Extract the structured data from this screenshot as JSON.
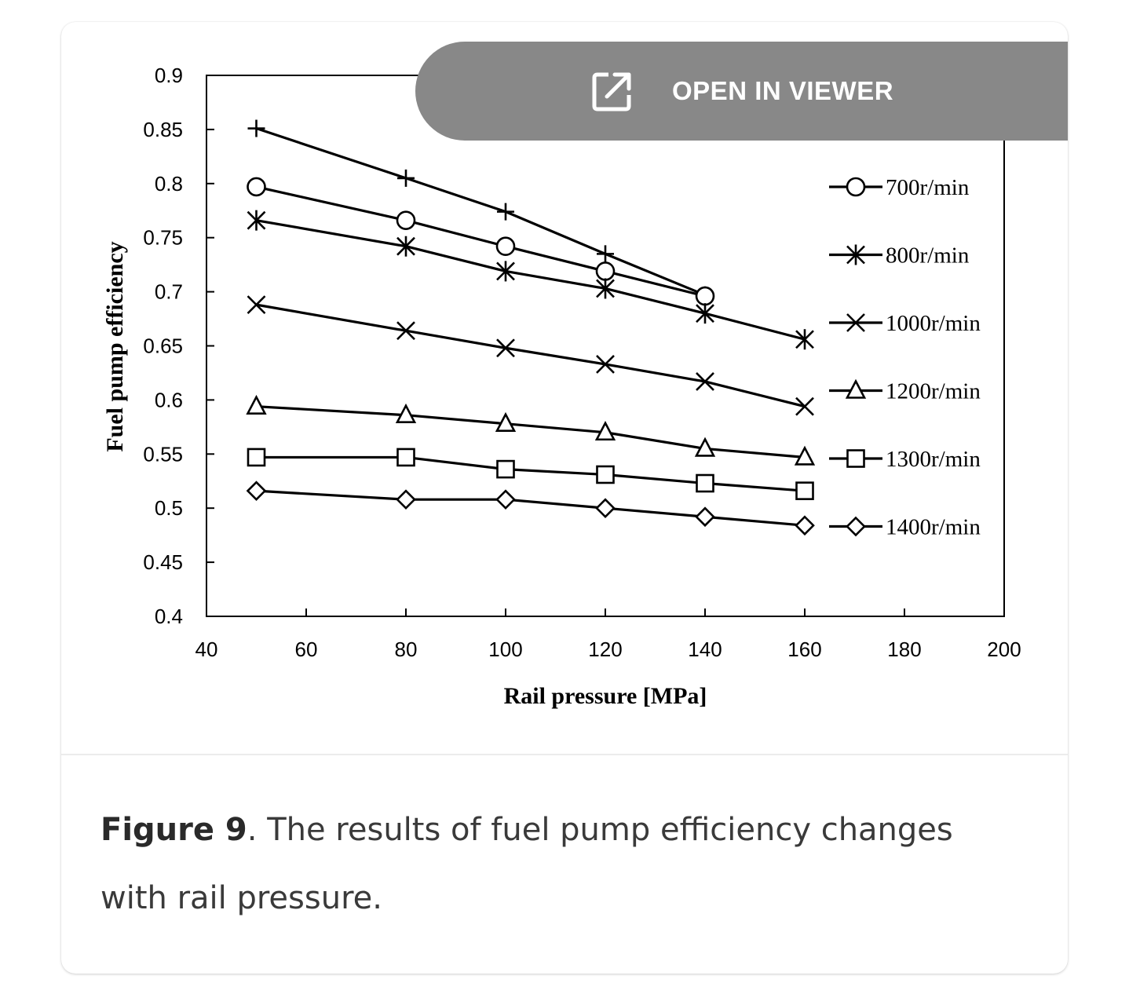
{
  "viewer_button": {
    "label": "OPEN IN VIEWER",
    "icon": "external-link-icon"
  },
  "caption": {
    "figure_label": "Figure 9",
    "text": ". The results of fuel pump efficiency changes with rail pressure."
  },
  "chart_data": {
    "type": "line",
    "xlabel": "Rail pressure [MPa]",
    "ylabel": "Fuel pump efficiency",
    "xlim": [
      40,
      200
    ],
    "ylim": [
      0.4,
      0.9
    ],
    "xticks": [
      "40",
      "60",
      "80",
      "100",
      "120",
      "140",
      "160",
      "180",
      "200"
    ],
    "yticks": [
      "0.4",
      "0.45",
      "0.5",
      "0.55",
      "0.6",
      "0.65",
      "0.7",
      "0.75",
      "0.8",
      "0.85",
      "0.9"
    ],
    "grid": false,
    "legend_position": "right",
    "series": [
      {
        "name": "",
        "marker": "plus",
        "x": [
          50,
          80,
          100,
          120,
          140
        ],
        "y": [
          0.851,
          0.805,
          0.774,
          0.735,
          0.697
        ]
      },
      {
        "name": "700r/min",
        "marker": "circle",
        "x": [
          50,
          80,
          100,
          120,
          140
        ],
        "y": [
          0.797,
          0.766,
          0.742,
          0.719,
          0.696
        ]
      },
      {
        "name": "800r/min",
        "marker": "asterisk",
        "x": [
          50,
          80,
          100,
          120,
          140,
          160
        ],
        "y": [
          0.766,
          0.742,
          0.719,
          0.703,
          0.68,
          0.656
        ]
      },
      {
        "name": "1000r/min",
        "marker": "x",
        "x": [
          50,
          80,
          100,
          120,
          140,
          160
        ],
        "y": [
          0.688,
          0.664,
          0.648,
          0.633,
          0.617,
          0.594
        ]
      },
      {
        "name": "1200r/min",
        "marker": "triangle",
        "x": [
          50,
          80,
          100,
          120,
          140,
          160
        ],
        "y": [
          0.594,
          0.586,
          0.578,
          0.57,
          0.555,
          0.547
        ]
      },
      {
        "name": "1300r/min",
        "marker": "square",
        "x": [
          50,
          80,
          100,
          120,
          140,
          160
        ],
        "y": [
          0.547,
          0.547,
          0.536,
          0.531,
          0.523,
          0.516
        ]
      },
      {
        "name": "1400r/min",
        "marker": "diamond",
        "x": [
          50,
          80,
          100,
          120,
          140,
          160
        ],
        "y": [
          0.516,
          0.508,
          0.508,
          0.5,
          0.492,
          0.484
        ]
      }
    ]
  }
}
